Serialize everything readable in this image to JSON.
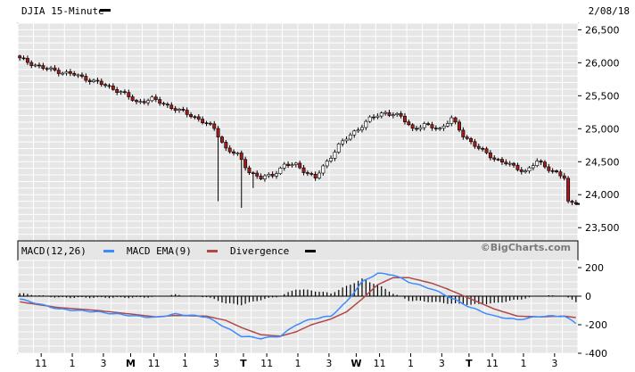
{
  "chart_data": {
    "type": "candlestick",
    "title": "DJIA 15-Minute",
    "date_label": "2/08/18",
    "watermark": "©BigCharts.com",
    "price_panel": {
      "ylim": [
        23300,
        26600
      ],
      "y_ticks": [
        "26,500",
        "26,000",
        "25,500",
        "25,000",
        "24,500",
        "24,000",
        "23,500"
      ],
      "tick_values": [
        26500,
        26000,
        25500,
        25000,
        24500,
        24000,
        23500
      ],
      "grid": true,
      "up_color": "#ffffff",
      "down_color": "#a11b1b",
      "last_value": 23860,
      "anchors": [
        [
          0,
          26060
        ],
        [
          6,
          25920
        ],
        [
          14,
          25820
        ],
        [
          20,
          25700
        ],
        [
          26,
          25560
        ],
        [
          30,
          25400
        ],
        [
          34,
          25450
        ],
        [
          40,
          25300
        ],
        [
          46,
          25150
        ],
        [
          50,
          25000
        ],
        [
          53,
          24700
        ],
        [
          56,
          24600
        ],
        [
          59,
          24350
        ],
        [
          62,
          24250
        ],
        [
          65,
          24300
        ],
        [
          68,
          24450
        ],
        [
          71,
          24450
        ],
        [
          74,
          24330
        ],
        [
          76,
          24250
        ],
        [
          79,
          24500
        ],
        [
          82,
          24750
        ],
        [
          86,
          24950
        ],
        [
          90,
          25150
        ],
        [
          94,
          25250
        ],
        [
          98,
          25180
        ],
        [
          101,
          25000
        ],
        [
          104,
          25050
        ],
        [
          108,
          25000
        ],
        [
          111,
          25150
        ],
        [
          114,
          24900
        ],
        [
          118,
          24700
        ],
        [
          122,
          24550
        ],
        [
          126,
          24450
        ],
        [
          130,
          24350
        ],
        [
          133,
          24500
        ],
        [
          136,
          24400
        ],
        [
          140,
          24250
        ],
        [
          141,
          23880
        ]
      ],
      "spikes": [
        [
          51,
          23900
        ],
        [
          57,
          23800
        ],
        [
          60,
          24100
        ]
      ]
    },
    "macd_panel": {
      "ylim": [
        -400,
        250
      ],
      "y_ticks": [
        "200",
        "0",
        "-200",
        "-400"
      ],
      "tick_values": [
        200,
        0,
        -200,
        -400
      ],
      "legend": [
        {
          "label": "MACD(12,26)",
          "color": "#3a8bff"
        },
        {
          "label": "MACD EMA(9)",
          "color": "#b04848"
        },
        {
          "label": "Divergence",
          "color": "#000000"
        }
      ],
      "macd_anchors": [
        [
          0,
          -20
        ],
        [
          10,
          -90
        ],
        [
          20,
          -110
        ],
        [
          30,
          -140
        ],
        [
          35,
          -150
        ],
        [
          40,
          -125
        ],
        [
          48,
          -145
        ],
        [
          53,
          -220
        ],
        [
          57,
          -280
        ],
        [
          62,
          -295
        ],
        [
          67,
          -280
        ],
        [
          71,
          -200
        ],
        [
          75,
          -160
        ],
        [
          80,
          -140
        ],
        [
          84,
          -40
        ],
        [
          88,
          100
        ],
        [
          92,
          160
        ],
        [
          96,
          150
        ],
        [
          100,
          100
        ],
        [
          106,
          50
        ],
        [
          110,
          0
        ],
        [
          116,
          -80
        ],
        [
          122,
          -140
        ],
        [
          128,
          -165
        ],
        [
          134,
          -140
        ],
        [
          140,
          -140
        ],
        [
          143,
          -190
        ]
      ],
      "ema_anchors": [
        [
          0,
          -40
        ],
        [
          10,
          -80
        ],
        [
          20,
          -100
        ],
        [
          30,
          -130
        ],
        [
          35,
          -145
        ],
        [
          40,
          -135
        ],
        [
          48,
          -140
        ],
        [
          53,
          -170
        ],
        [
          57,
          -220
        ],
        [
          62,
          -270
        ],
        [
          67,
          -280
        ],
        [
          71,
          -250
        ],
        [
          75,
          -200
        ],
        [
          80,
          -160
        ],
        [
          84,
          -110
        ],
        [
          88,
          -20
        ],
        [
          92,
          80
        ],
        [
          96,
          130
        ],
        [
          100,
          130
        ],
        [
          106,
          90
        ],
        [
          110,
          50
        ],
        [
          116,
          -20
        ],
        [
          122,
          -90
        ],
        [
          128,
          -140
        ],
        [
          134,
          -145
        ],
        [
          140,
          -140
        ],
        [
          143,
          -150
        ]
      ]
    },
    "x_axis": {
      "bars": 144,
      "ticks": [
        {
          "label": "11",
          "bar": 6,
          "bold": false
        },
        {
          "label": "1",
          "bar": 14,
          "bold": false
        },
        {
          "label": "3",
          "bar": 22,
          "bold": false
        },
        {
          "label": "M",
          "bar": 29,
          "bold": true
        },
        {
          "label": "11",
          "bar": 35,
          "bold": false
        },
        {
          "label": "1",
          "bar": 43,
          "bold": false
        },
        {
          "label": "3",
          "bar": 51,
          "bold": false
        },
        {
          "label": "T",
          "bar": 58,
          "bold": true
        },
        {
          "label": "11",
          "bar": 64,
          "bold": false
        },
        {
          "label": "1",
          "bar": 72,
          "bold": false
        },
        {
          "label": "3",
          "bar": 80,
          "bold": false
        },
        {
          "label": "W",
          "bar": 87,
          "bold": true
        },
        {
          "label": "11",
          "bar": 93,
          "bold": false
        },
        {
          "label": "1",
          "bar": 101,
          "bold": false
        },
        {
          "label": "3",
          "bar": 109,
          "bold": false
        },
        {
          "label": "T",
          "bar": 116,
          "bold": true
        },
        {
          "label": "11",
          "bar": 122,
          "bold": false
        },
        {
          "label": "1",
          "bar": 130,
          "bold": false
        },
        {
          "label": "3",
          "bar": 138,
          "bold": false
        }
      ]
    }
  }
}
